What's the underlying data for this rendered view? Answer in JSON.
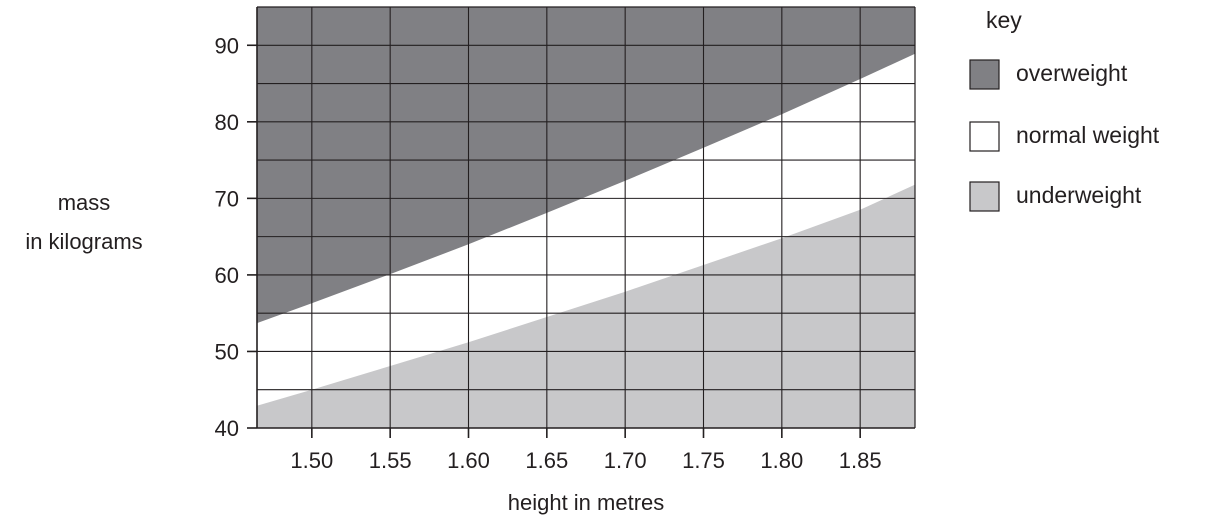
{
  "chart_data": {
    "type": "area",
    "xlabel": "height in metres",
    "ylabel_lines": [
      "mass",
      "in kilograms"
    ],
    "x_ticks": [
      1.5,
      1.55,
      1.6,
      1.65,
      1.7,
      1.75,
      1.8,
      1.85
    ],
    "x_tick_labels": [
      "1.50",
      "1.55",
      "1.60",
      "1.65",
      "1.70",
      "1.75",
      "1.80",
      "1.85"
    ],
    "y_ticks": [
      40,
      50,
      60,
      70,
      80,
      90
    ],
    "y_tick_labels": [
      "40",
      "50",
      "60",
      "70",
      "80",
      "90"
    ],
    "xlim": [
      1.465,
      1.885
    ],
    "ylim": [
      40,
      95
    ],
    "x_grid_step": 0.05,
    "y_grid_step": 5,
    "grid": true,
    "boundaries": [
      {
        "name": "overweight lower boundary",
        "x": [
          1.465,
          1.5,
          1.55,
          1.6,
          1.65,
          1.7,
          1.75,
          1.8,
          1.85,
          1.885
        ],
        "y": [
          53.7,
          56.3,
          60.1,
          64.0,
          68.1,
          72.3,
          76.6,
          81.0,
          85.6,
          88.9
        ]
      },
      {
        "name": "underweight upper boundary",
        "x": [
          1.465,
          1.5,
          1.55,
          1.6,
          1.65,
          1.7,
          1.75,
          1.8,
          1.85,
          1.885
        ],
        "y": [
          42.9,
          45.0,
          48.1,
          51.2,
          54.5,
          57.8,
          61.3,
          64.8,
          68.5,
          71.8
        ]
      }
    ],
    "regions": [
      {
        "key": "overweight",
        "label": "overweight",
        "color": "#808084"
      },
      {
        "key": "normal",
        "label": "normal weight",
        "color": "#ffffff"
      },
      {
        "key": "underweight",
        "label": "underweight",
        "color": "#c8c8ca"
      }
    ],
    "legend": {
      "title": "key",
      "placement": "right"
    }
  },
  "colors": {
    "overweight": "#808084",
    "normal": "#ffffff",
    "underweight": "#c8c8ca",
    "ink": "#231f20"
  }
}
